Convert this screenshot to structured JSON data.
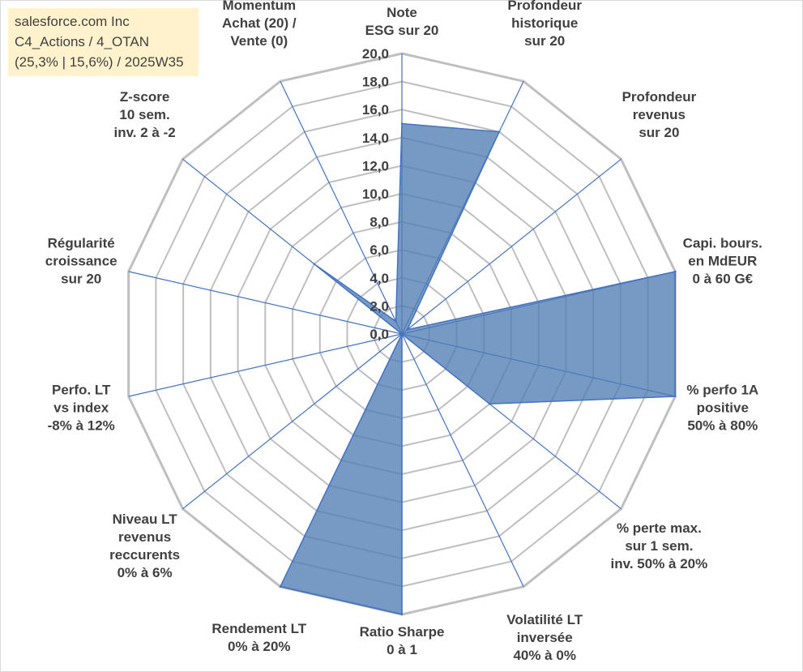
{
  "info_box": {
    "line1": "salesforce.com Inc",
    "line2": "C4_Actions / 4_OTAN",
    "line3": "(25,3% | 15,6%) / 2025W35"
  },
  "colors": {
    "grid": "#bfbfbf",
    "spoke": "#4472c4",
    "fill": "#4f7db4",
    "stroke": "#4472c4",
    "info_bg": "#fff2cc",
    "label": "#404040"
  },
  "chart_data": {
    "type": "radar",
    "title": "",
    "rmin": 0,
    "rmax": 20,
    "tick_labels": [
      "0,0",
      "2,0",
      "4,0",
      "6,0",
      "8,0",
      "10,0",
      "12,0",
      "14,0",
      "16,0",
      "18,0",
      "20,0"
    ],
    "categories": [
      [
        "Note",
        "ESG sur 20"
      ],
      [
        "Profondeur",
        "historique",
        "sur 20"
      ],
      [
        "Profondeur",
        "revenus",
        "sur 20"
      ],
      [
        "Capi. bours.",
        "en MdEUR",
        "0 à 60 G€"
      ],
      [
        "% perfo 1A",
        "positive",
        "50% à 80%"
      ],
      [
        "% perte max.",
        "sur 1 sem.",
        "inv. 50% à 20%"
      ],
      [
        "Volatilité LT",
        "inversée",
        "40% à 0%"
      ],
      [
        "Ratio Sharpe",
        "0 à 1"
      ],
      [
        "Rendement LT",
        "0% à 20%"
      ],
      [
        "Niveau LT",
        "revenus",
        "reccurents",
        "0% à 6%"
      ],
      [
        "Perfo. LT",
        "vs index",
        "-8% à 12%"
      ],
      [
        "Régularité",
        "croissance",
        "sur 20"
      ],
      [
        "Z-score",
        "10 sem.",
        "inv. 2 à -2"
      ],
      [
        "Momentum",
        "Achat (20) /",
        "Vente (0)"
      ]
    ],
    "values": [
      15,
      16,
      0.5,
      20,
      20,
      8,
      0,
      20,
      20,
      0,
      0,
      0,
      8,
      1
    ],
    "grid": true
  }
}
